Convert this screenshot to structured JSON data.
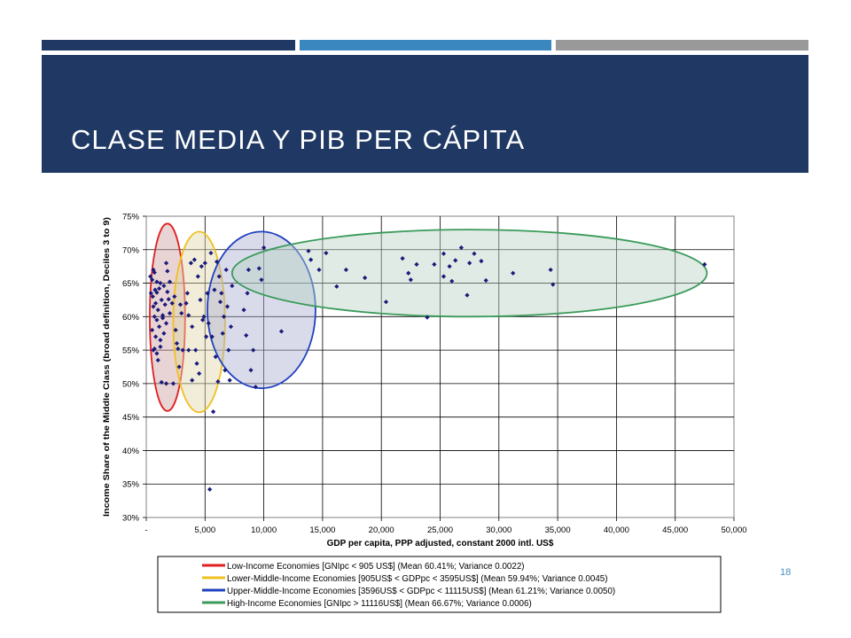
{
  "slide": {
    "title": "CLASE MEDIA Y PIB PER CÁPITA",
    "page_number": "18",
    "accent_colors": {
      "header": "#1f3864",
      "bar1": "#1f3864",
      "bar2": "#3a87c0",
      "bar3": "#999999"
    }
  },
  "chart_data": {
    "type": "scatter",
    "xlabel": "GDP per capita, PPP adjusted, constant 2000 intl. US$",
    "ylabel": "Income Share of the Middle Class (broad definition, Deciles 3 to 9)",
    "xlim": [
      0,
      50000
    ],
    "ylim": [
      30,
      75
    ],
    "x_ticks": [
      "-",
      "5,000",
      "10,000",
      "15,000",
      "20,000",
      "25,000",
      "30,000",
      "35,000",
      "40,000",
      "45,000",
      "50,000"
    ],
    "y_ticks": [
      "30%",
      "35%",
      "40%",
      "45%",
      "50%",
      "55%",
      "60%",
      "65%",
      "70%",
      "75%"
    ],
    "grid": true,
    "legend_position": "below",
    "marker_color": "#1a1a7a",
    "series": [
      {
        "name": "Low-Income Economies [GNIpc < 905 US$] (Mean 60.41%; Variance 0.0022)",
        "color": "#e02020",
        "fill": "rgba(205,160,160,0.45)",
        "ellipse": {
          "cx": 1800,
          "cy": 59.9,
          "rx": 1500,
          "ry": 14.0
        }
      },
      {
        "name": "Lower-Middle-Income Economies [905US$ < GDPpc < 3595US$] (Mean 59.94%; Variance 0.0045)",
        "color": "#f0c020",
        "fill": "rgba(225,215,170,0.45)",
        "ellipse": {
          "cx": 4500,
          "cy": 59.2,
          "rx": 2200,
          "ry": 13.5
        }
      },
      {
        "name": "Upper-Middle-Income Economies [3596US$ < GDPpc < 11115US$] (Mean 61.21%; Variance 0.0050)",
        "color": "#2040c0",
        "fill": "rgba(170,175,210,0.45)",
        "ellipse": {
          "cx": 9800,
          "cy": 61.0,
          "rx": 4600,
          "ry": 11.7
        }
      },
      {
        "name": "High-Income Economies [GNIpc > 11116US$] (Mean 66.67%; Variance 0.0006)",
        "color": "#3a9a5a",
        "fill": "rgba(185,210,195,0.45)",
        "ellipse": {
          "cx": 27500,
          "cy": 66.5,
          "rx": 20200,
          "ry": 6.5
        }
      }
    ],
    "points": [
      [
        350,
        66.0
      ],
      [
        500,
        65.5
      ],
      [
        600,
        67.0
      ],
      [
        700,
        66.6
      ],
      [
        400,
        63.5
      ],
      [
        550,
        63.0
      ],
      [
        750,
        64.0
      ],
      [
        900,
        63.6
      ],
      [
        1100,
        64.2
      ],
      [
        1200,
        65.0
      ],
      [
        1500,
        64.6
      ],
      [
        1700,
        68.0
      ],
      [
        1800,
        66.8
      ],
      [
        2000,
        65.2
      ],
      [
        600,
        61.5
      ],
      [
        800,
        62.0
      ],
      [
        1000,
        61.0
      ],
      [
        1300,
        62.5
      ],
      [
        1600,
        61.8
      ],
      [
        1900,
        62.6
      ],
      [
        700,
        60.0
      ],
      [
        900,
        59.5
      ],
      [
        1100,
        58.5
      ],
      [
        1400,
        60.2
      ],
      [
        1700,
        59.0
      ],
      [
        2000,
        60.5
      ],
      [
        500,
        58.0
      ],
      [
        800,
        57.0
      ],
      [
        1200,
        56.5
      ],
      [
        1500,
        57.5
      ],
      [
        600,
        55.0
      ],
      [
        900,
        54.5
      ],
      [
        1200,
        55.5
      ],
      [
        1000,
        53.5
      ],
      [
        700,
        55.2
      ],
      [
        1300,
        50.2
      ],
      [
        1700,
        50.0
      ],
      [
        2300,
        50.0
      ],
      [
        2200,
        62.0
      ],
      [
        2400,
        63.0
      ],
      [
        2500,
        58.0
      ],
      [
        2600,
        56.0
      ],
      [
        2700,
        55.2
      ],
      [
        2800,
        52.5
      ],
      [
        3000,
        60.5
      ],
      [
        3100,
        55.0
      ],
      [
        2900,
        61.8
      ],
      [
        1800,
        63.7
      ],
      [
        900,
        65.2
      ],
      [
        1400,
        59.8
      ],
      [
        3400,
        62.0
      ],
      [
        3600,
        60.2
      ],
      [
        3800,
        68.0
      ],
      [
        4100,
        68.5
      ],
      [
        4400,
        66.0
      ],
      [
        4700,
        67.5
      ],
      [
        5000,
        68.0
      ],
      [
        3500,
        63.5
      ],
      [
        3900,
        58.5
      ],
      [
        4200,
        55.0
      ],
      [
        4600,
        62.5
      ],
      [
        4900,
        60.0
      ],
      [
        5100,
        57.0
      ],
      [
        4300,
        53.0
      ],
      [
        3600,
        55.0
      ],
      [
        4500,
        51.5
      ],
      [
        3900,
        50.5
      ],
      [
        5200,
        63.5
      ],
      [
        5500,
        69.5
      ],
      [
        5800,
        64.0
      ],
      [
        6000,
        68.2
      ],
      [
        6200,
        66.0
      ],
      [
        6400,
        63.5
      ],
      [
        6600,
        60.0
      ],
      [
        6800,
        67.0
      ],
      [
        7000,
        55.0
      ],
      [
        7200,
        58.5
      ],
      [
        5400,
        34.2
      ],
      [
        5700,
        45.8
      ],
      [
        5900,
        54.0
      ],
      [
        6100,
        50.3
      ],
      [
        6300,
        62.2
      ],
      [
        6500,
        57.5
      ],
      [
        6900,
        61.5
      ],
      [
        7100,
        50.5
      ],
      [
        6700,
        52.0
      ],
      [
        4800,
        59.5
      ],
      [
        5300,
        59.0
      ],
      [
        5600,
        57.0
      ],
      [
        7300,
        64.6
      ],
      [
        8300,
        61.0
      ],
      [
        8500,
        57.2
      ],
      [
        8600,
        63.5
      ],
      [
        8900,
        52.0
      ],
      [
        9100,
        55.0
      ],
      [
        9300,
        49.5
      ],
      [
        8700,
        67.0
      ],
      [
        9600,
        67.2
      ],
      [
        9800,
        65.5
      ],
      [
        10000,
        70.3
      ],
      [
        11500,
        57.8
      ],
      [
        13800,
        69.8
      ],
      [
        14000,
        68.5
      ],
      [
        14700,
        67.0
      ],
      [
        15300,
        69.5
      ],
      [
        16200,
        64.5
      ],
      [
        17000,
        67.0
      ],
      [
        18600,
        65.8
      ],
      [
        20400,
        62.2
      ],
      [
        21800,
        68.7
      ],
      [
        22300,
        66.5
      ],
      [
        22500,
        65.5
      ],
      [
        23000,
        67.8
      ],
      [
        23900,
        59.9
      ],
      [
        24500,
        67.8
      ],
      [
        25300,
        69.4
      ],
      [
        25300,
        66.0
      ],
      [
        25800,
        67.5
      ],
      [
        26000,
        65.3
      ],
      [
        26300,
        68.4
      ],
      [
        26800,
        70.3
      ],
      [
        27300,
        63.2
      ],
      [
        27500,
        68.0
      ],
      [
        27900,
        69.4
      ],
      [
        28500,
        68.3
      ],
      [
        28900,
        65.4
      ],
      [
        31200,
        66.5
      ],
      [
        34400,
        67.0
      ],
      [
        34600,
        64.8
      ],
      [
        47500,
        67.8
      ]
    ]
  }
}
